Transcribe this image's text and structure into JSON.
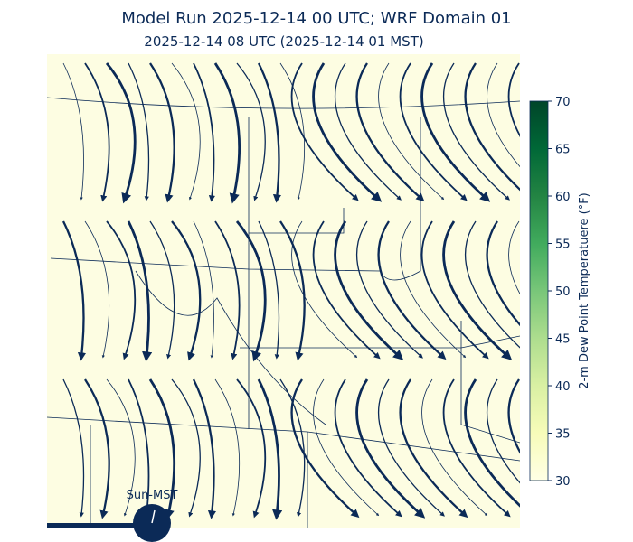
{
  "title": "Model Run 2025-12-14 00 UTC; WRF Domain 01",
  "subtitle": "2025-12-14 08 UTC  (2025-12-14 01 MST)",
  "colorbar": {
    "label": "2-m Dew Point Temperatuere (°F)",
    "lim": [
      30,
      70
    ],
    "ticks": [
      30,
      35,
      40,
      45,
      50,
      55,
      60,
      65,
      70
    ],
    "colors": [
      "#ffffe5",
      "#f7fcb9",
      "#d9f0a3",
      "#addd8e",
      "#78c679",
      "#41ab5d",
      "#238443",
      "#006837",
      "#004529"
    ]
  },
  "clock": {
    "label": "Sun-MST"
  }
}
